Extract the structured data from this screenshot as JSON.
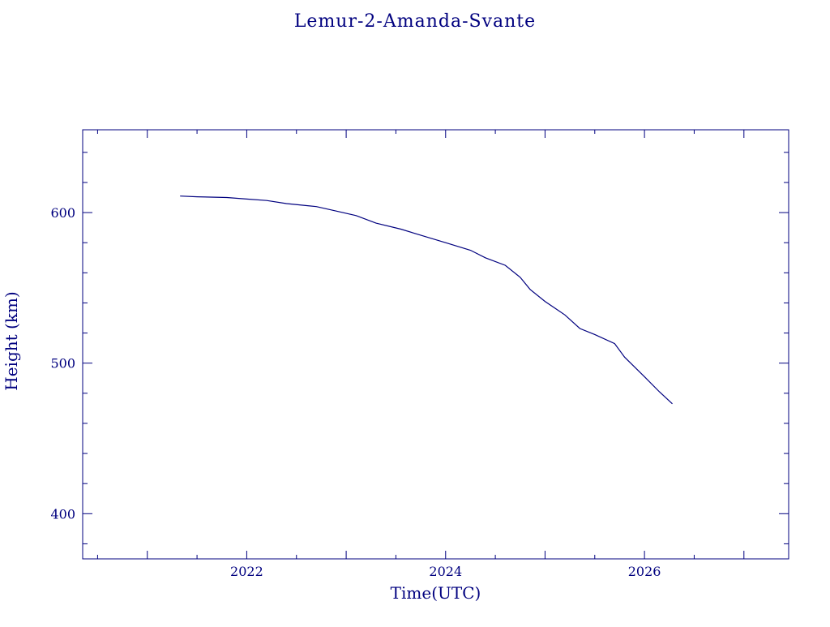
{
  "colors": {
    "ink": "#00007f",
    "background": "#ffffff"
  },
  "chart_data": {
    "type": "line",
    "title": "Lemur-2-Amanda-Svante",
    "xlabel": "Time(UTC)",
    "ylabel": "Height (km)",
    "xlim": [
      2020.35,
      2027.45
    ],
    "ylim": [
      370,
      655
    ],
    "x_ticks": [
      2022,
      2024,
      2026
    ],
    "x_tick_labels": [
      "2022",
      "2024",
      "2026"
    ],
    "y_ticks": [
      400,
      500,
      600
    ],
    "y_tick_labels": [
      "400",
      "500",
      "600"
    ],
    "grid": false,
    "legend": "none",
    "series": [
      {
        "x": [
          2021.33,
          2021.5,
          2021.8,
          2022.0,
          2022.2,
          2022.4,
          2022.7,
          2022.9,
          2023.1,
          2023.3,
          2023.55,
          2023.8,
          2024.0,
          2024.25,
          2024.4,
          2024.6,
          2024.75,
          2024.85,
          2025.0,
          2025.2,
          2025.35,
          2025.5,
          2025.7,
          2025.8,
          2026.0,
          2026.15,
          2026.28
        ],
        "y": [
          611,
          610.5,
          610,
          609,
          608,
          606,
          604,
          601,
          598,
          593,
          589,
          584,
          580,
          575,
          570,
          565,
          557,
          549,
          541,
          532,
          523,
          519,
          513,
          504,
          491,
          481,
          473
        ]
      }
    ]
  }
}
